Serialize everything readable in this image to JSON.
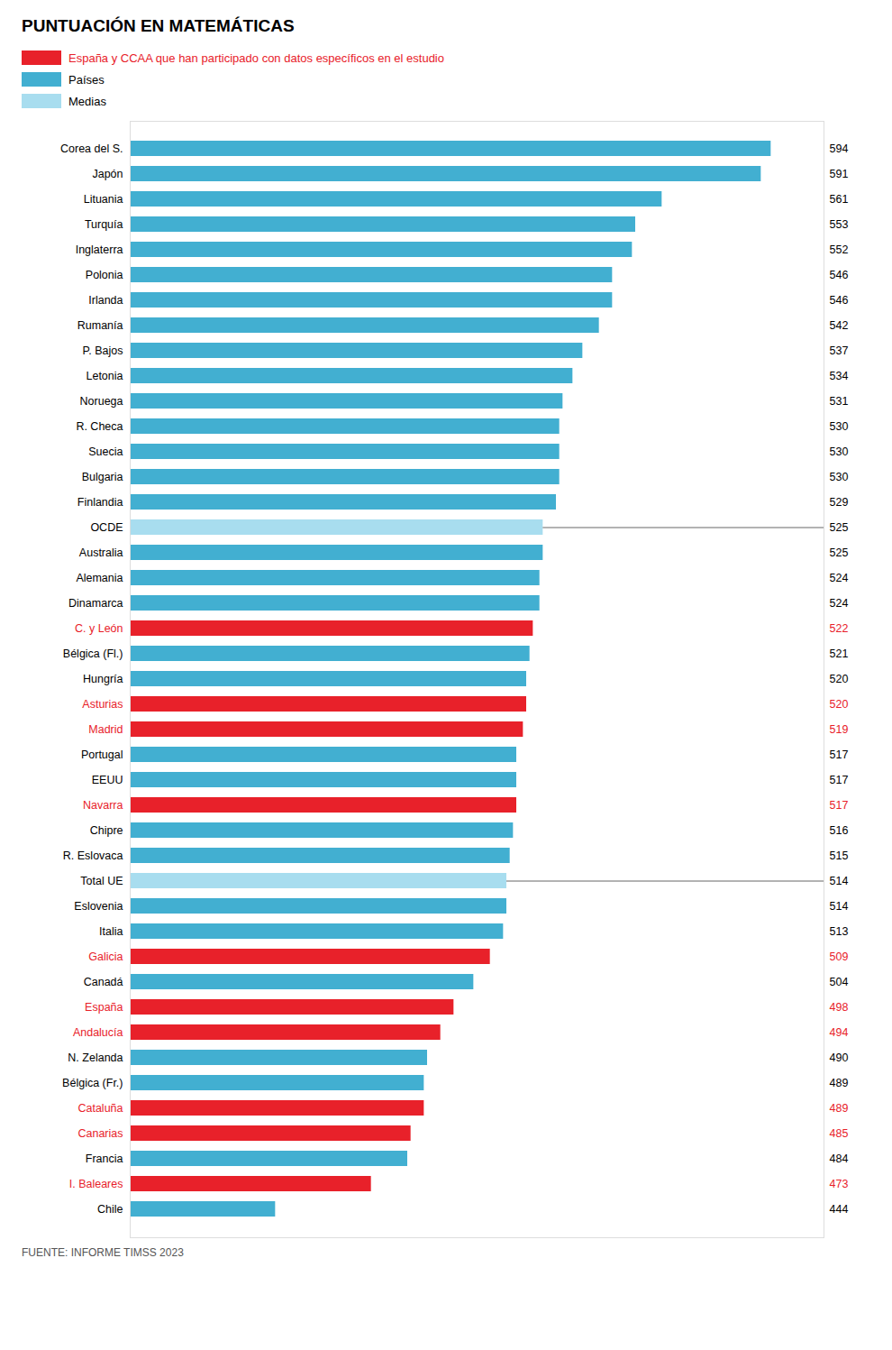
{
  "chart_data": {
    "type": "bar",
    "orientation": "horizontal",
    "title": "PUNTUACIÓN EN MATEMÁTICAS",
    "source": "FUENTE: INFORME TIMSS 2023",
    "categories": [
      "Corea del S.",
      "Japón",
      "Lituania",
      "Turquía",
      "Inglaterra",
      "Polonia",
      "Irlanda",
      "Rumanía",
      "P. Bajos",
      "Letonia",
      "Noruega",
      "R. Checa",
      "Suecia",
      "Bulgaria",
      "Finlandia",
      "OCDE",
      "Australia",
      "Alemania",
      "Dinamarca",
      "C. y León",
      "Bélgica (Fl.)",
      "Hungría",
      "Asturias",
      "Madrid",
      "Portugal",
      "EEUU",
      "Navarra",
      "Chipre",
      "R. Eslovaca",
      "Total UE",
      "Eslovenia",
      "Italia",
      "Galicia",
      "Canadá",
      "España",
      "Andalucía",
      "N. Zelanda",
      "Bélgica (Fr.)",
      "Cataluña",
      "Canarias",
      "Francia",
      "I. Baleares",
      "Chile"
    ],
    "series": [
      {
        "name": "España y CCAA que han participado con datos específicos en el estudio",
        "color": "#e8212a",
        "values": [
          null,
          null,
          null,
          null,
          null,
          null,
          null,
          null,
          null,
          null,
          null,
          null,
          null,
          null,
          null,
          null,
          null,
          null,
          null,
          522,
          null,
          null,
          520,
          519,
          null,
          null,
          517,
          null,
          null,
          null,
          null,
          null,
          509,
          null,
          498,
          494,
          null,
          null,
          489,
          485,
          null,
          473,
          null
        ]
      },
      {
        "name": "Países",
        "color": "#42afd1",
        "values": [
          594,
          591,
          561,
          553,
          552,
          546,
          546,
          542,
          537,
          534,
          531,
          530,
          530,
          530,
          529,
          null,
          525,
          524,
          524,
          null,
          521,
          520,
          null,
          null,
          517,
          517,
          null,
          516,
          515,
          null,
          514,
          513,
          null,
          504,
          null,
          null,
          490,
          489,
          null,
          null,
          484,
          null,
          444
        ]
      },
      {
        "name": "Medias",
        "color": "#a8ddef",
        "values": [
          null,
          null,
          null,
          null,
          null,
          null,
          null,
          null,
          null,
          null,
          null,
          null,
          null,
          null,
          null,
          525,
          null,
          null,
          null,
          null,
          null,
          null,
          null,
          null,
          null,
          null,
          null,
          null,
          null,
          514,
          null,
          null,
          null,
          null,
          null,
          null,
          null,
          null,
          null,
          null,
          null,
          null,
          null
        ]
      }
    ],
    "xlim": [
      400,
      610
    ],
    "tick_labels": false,
    "grid": false,
    "legend": "top left",
    "data_labels": true
  }
}
